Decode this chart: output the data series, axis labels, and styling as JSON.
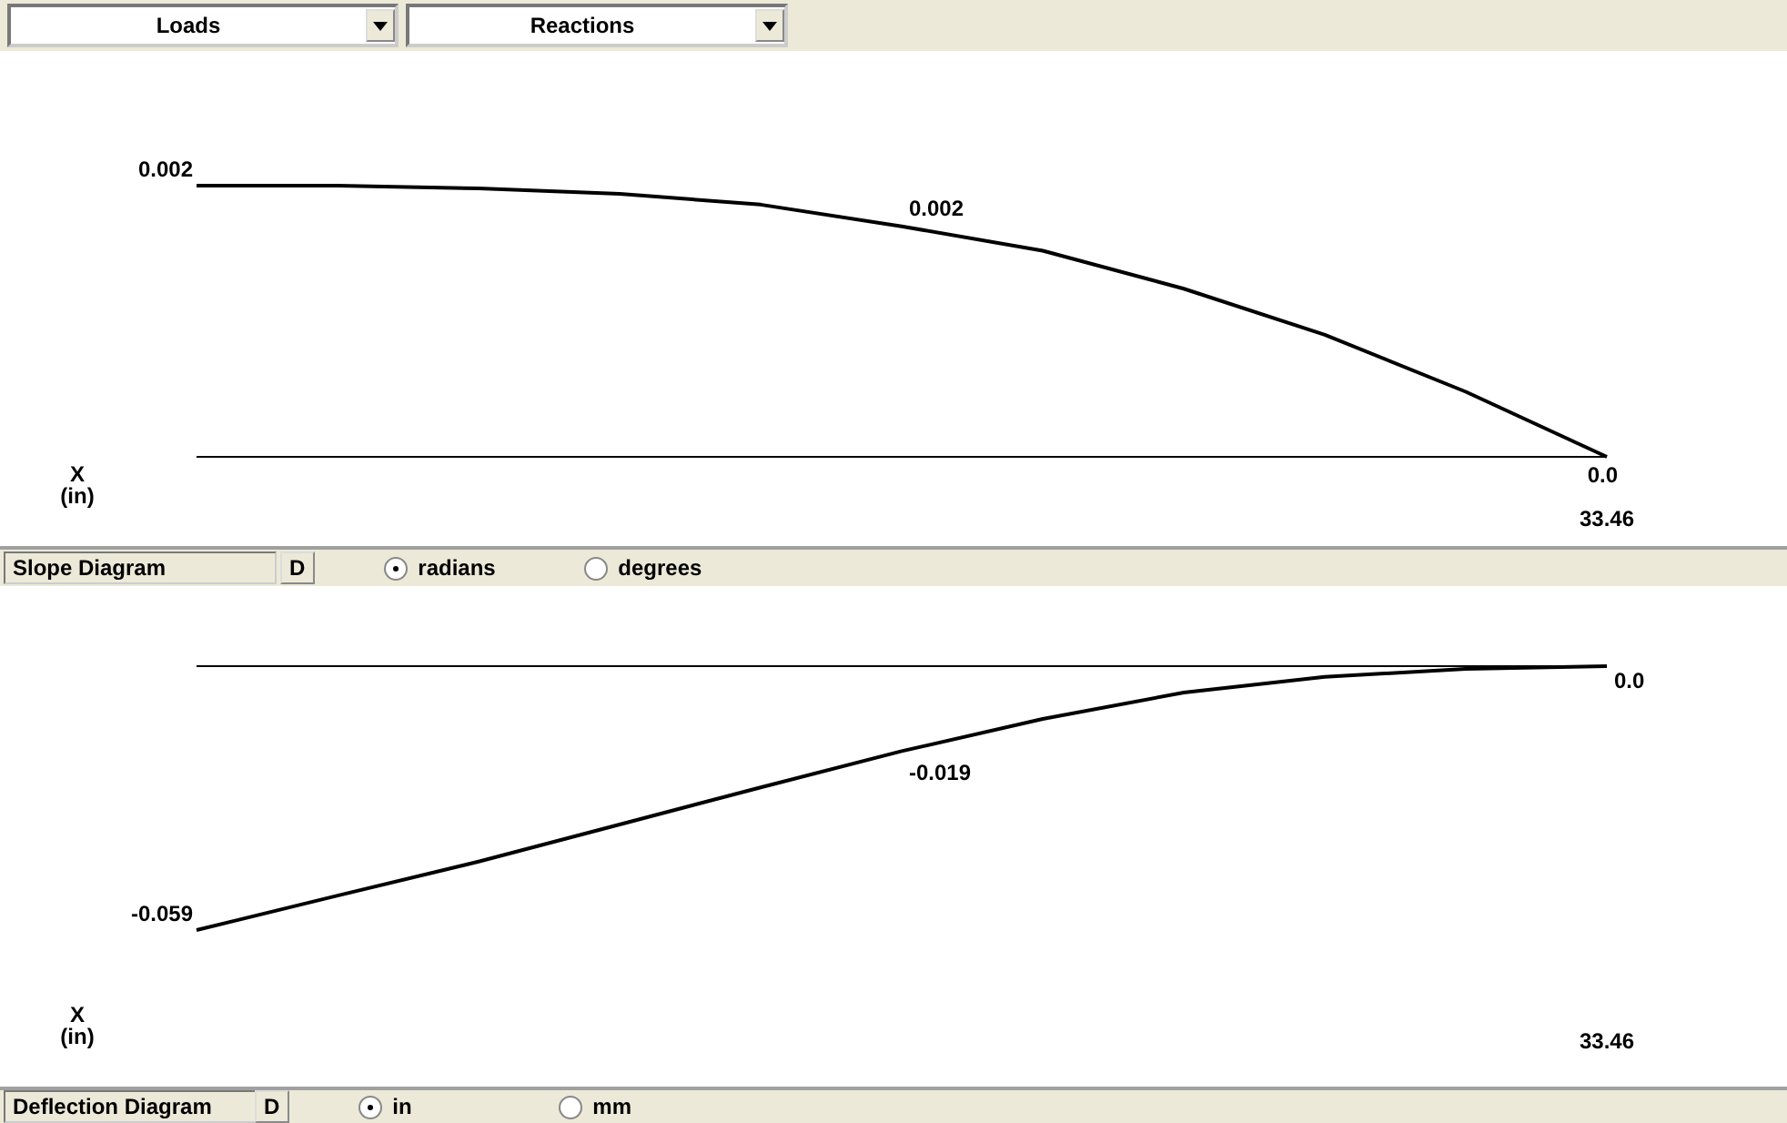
{
  "chart_data": [
    {
      "type": "line",
      "title": "Slope Diagram",
      "xlabel": "X (in)",
      "annotations": [
        "Loads",
        "Reactions",
        "D",
        "radians",
        "degrees",
        "33.46"
      ],
      "categories": [
        null,
        null,
        null,
        null,
        null,
        null,
        null,
        null,
        null,
        null,
        null
      ],
      "marker": "none",
      "line_style": "solid",
      "ref_lines": [
        {
          "axis": "y",
          "value": 0,
          "color": "#000000"
        }
      ],
      "series": [
        {
          "color": "#000000",
          "values": [
            0.002,
            0.002,
            0.00198,
            0.00194,
            0.00186,
            0.0017,
            0.00152,
            0.00124,
            0.0009,
            0.00048,
            0
          ],
          "value_labels": [
            "0.002",
            null,
            null,
            null,
            null,
            "0.002",
            null,
            null,
            null,
            null,
            "0.0"
          ]
        }
      ]
    },
    {
      "type": "line",
      "title": "Deflection Diagram",
      "xlabel": "X (in)",
      "annotations": [
        "D",
        "in",
        "mm",
        "33.46"
      ],
      "categories": [
        null,
        null,
        null,
        null,
        null,
        null,
        null,
        null,
        null,
        null,
        null
      ],
      "marker": "none",
      "line_style": "solid",
      "ref_lines": [
        {
          "axis": "y",
          "value": 0,
          "color": "#000000"
        }
      ],
      "series": [
        {
          "color": "#000000",
          "values": [
            -0.059,
            -0.0513,
            -0.0437,
            -0.0354,
            -0.0271,
            -0.019,
            -0.0118,
            -0.0059,
            -0.0024,
            -0.0006,
            0
          ],
          "value_labels": [
            "-0.059",
            null,
            null,
            null,
            null,
            "-0.019",
            null,
            null,
            null,
            null,
            "0.0"
          ]
        }
      ]
    }
  ]
}
